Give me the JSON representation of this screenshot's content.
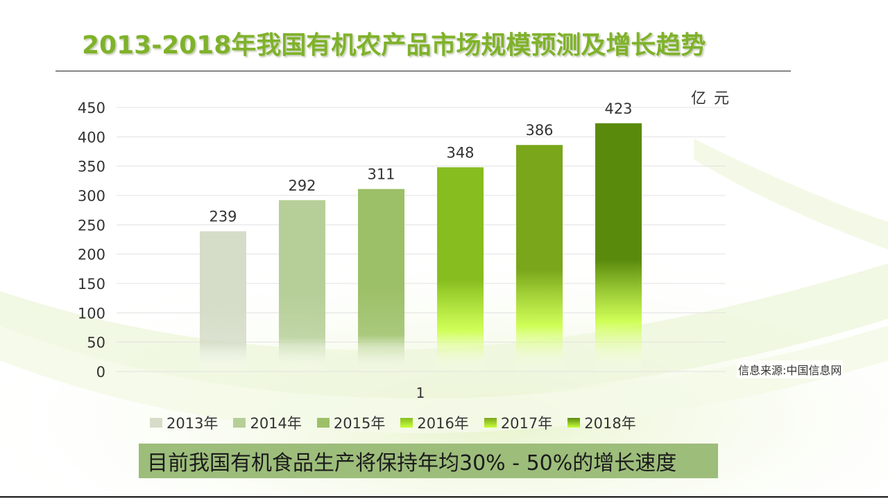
{
  "title": "2013-2018年我国有机农产品市场规模预测及增长趋势",
  "unit_label": "亿 元",
  "source": "信息来源:中国信息网",
  "callout": "目前我国有机食品生产将保持年均30% - 50%的增长速度",
  "colors": {
    "title": "#7fb22a",
    "callout_bg": "#9dbd7b",
    "series": [
      "#d5ddc8",
      "#b6cf98",
      "#9cc067",
      "#87bd1f",
      "#79a61a",
      "#5a8a0c"
    ],
    "bar_fade": "#c8ff3c"
  },
  "chart_data": {
    "type": "bar",
    "categories": [
      "1"
    ],
    "series": [
      {
        "name": "2013年",
        "values": [
          239
        ]
      },
      {
        "name": "2014年",
        "values": [
          292
        ]
      },
      {
        "name": "2015年",
        "values": [
          311
        ]
      },
      {
        "name": "2016年",
        "values": [
          348
        ]
      },
      {
        "name": "2017年",
        "values": [
          386
        ]
      },
      {
        "name": "2018年",
        "values": [
          423
        ]
      }
    ],
    "ylim": [
      0,
      450
    ],
    "yticks": [
      0,
      50,
      100,
      150,
      200,
      250,
      300,
      350,
      400,
      450
    ],
    "ylabel": "亿 元",
    "grid": true,
    "legend": "bottom",
    "data_labels": true
  }
}
